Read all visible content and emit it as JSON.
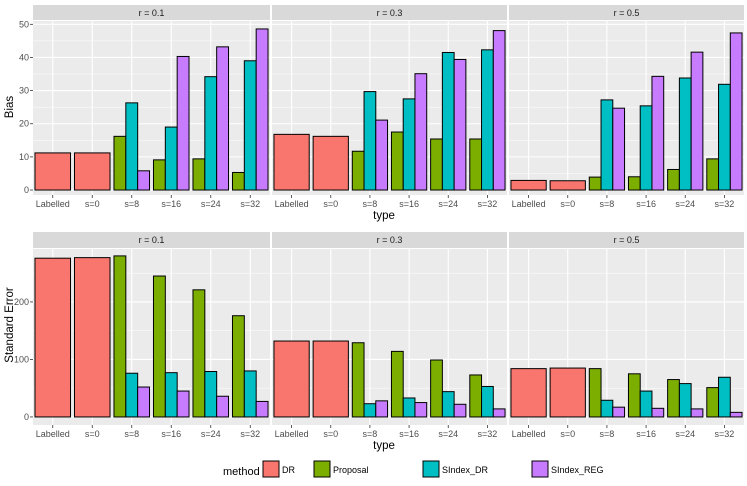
{
  "colors": {
    "DR": "#F8766D",
    "Proposal": "#7CAE00",
    "SIndex_DR": "#00BFC4",
    "SIndex_REG": "#C77CFF",
    "panel_bg": "#EBEBEB",
    "strip_bg": "#D9D9D9",
    "grid": "#FFFFFF"
  },
  "chart_data": [
    {
      "type": "bar",
      "title": "",
      "xlabel": "type",
      "ylabel": "Bias",
      "ylim": [
        -1.5,
        51
      ],
      "yticks": [
        0,
        10,
        20,
        30,
        40,
        50
      ],
      "categories": [
        "Labelled",
        "s=0",
        "s=8",
        "s=16",
        "s=24",
        "s=32"
      ],
      "facets": [
        {
          "label": "r = 0.1",
          "series": [
            {
              "name": "DR",
              "values": [
                11.2,
                11.2,
                null,
                null,
                null,
                null
              ]
            },
            {
              "name": "Proposal",
              "values": [
                null,
                null,
                16.2,
                9.1,
                9.4,
                5.3
              ]
            },
            {
              "name": "SIndex_DR",
              "values": [
                null,
                null,
                26.3,
                19.0,
                34.2,
                39.0
              ]
            },
            {
              "name": "SIndex_REG",
              "values": [
                null,
                null,
                5.8,
                40.3,
                43.2,
                48.6
              ]
            }
          ]
        },
        {
          "label": "r = 0.3",
          "series": [
            {
              "name": "DR",
              "values": [
                16.8,
                16.2,
                null,
                null,
                null,
                null
              ]
            },
            {
              "name": "Proposal",
              "values": [
                null,
                null,
                11.7,
                17.5,
                15.4,
                15.4
              ]
            },
            {
              "name": "SIndex_DR",
              "values": [
                null,
                null,
                29.7,
                27.5,
                41.5,
                42.3
              ]
            },
            {
              "name": "SIndex_REG",
              "values": [
                null,
                null,
                21.1,
                35.1,
                39.4,
                48.1
              ]
            }
          ]
        },
        {
          "label": "r = 0.5",
          "series": [
            {
              "name": "DR",
              "values": [
                2.9,
                2.8,
                null,
                null,
                null,
                null
              ]
            },
            {
              "name": "Proposal",
              "values": [
                null,
                null,
                3.9,
                4.0,
                6.2,
                9.4
              ]
            },
            {
              "name": "SIndex_DR",
              "values": [
                null,
                null,
                27.2,
                25.4,
                33.8,
                31.9
              ]
            },
            {
              "name": "SIndex_REG",
              "values": [
                null,
                null,
                24.7,
                34.3,
                41.6,
                47.4
              ]
            }
          ]
        }
      ]
    },
    {
      "type": "bar",
      "title": "",
      "xlabel": "type",
      "ylabel": "Standard Error",
      "ylim": [
        -14,
        292
      ],
      "yticks": [
        0,
        100,
        200
      ],
      "categories": [
        "Labelled",
        "s=0",
        "s=8",
        "s=16",
        "s=24",
        "s=32"
      ],
      "facets": [
        {
          "label": "r = 0.1",
          "series": [
            {
              "name": "DR",
              "values": [
                276,
                277,
                null,
                null,
                null,
                null
              ]
            },
            {
              "name": "Proposal",
              "values": [
                null,
                null,
                280,
                245,
                221,
                176
              ]
            },
            {
              "name": "SIndex_DR",
              "values": [
                null,
                null,
                76,
                77,
                79,
                80
              ]
            },
            {
              "name": "SIndex_REG",
              "values": [
                null,
                null,
                52,
                45,
                36,
                27
              ]
            }
          ]
        },
        {
          "label": "r = 0.3",
          "series": [
            {
              "name": "DR",
              "values": [
                132,
                132,
                null,
                null,
                null,
                null
              ]
            },
            {
              "name": "Proposal",
              "values": [
                null,
                null,
                129,
                114,
                99,
                73
              ]
            },
            {
              "name": "SIndex_DR",
              "values": [
                null,
                null,
                23,
                33,
                44,
                53
              ]
            },
            {
              "name": "SIndex_REG",
              "values": [
                null,
                null,
                28,
                25,
                22,
                14
              ]
            }
          ]
        },
        {
          "label": "r = 0.5",
          "series": [
            {
              "name": "DR",
              "values": [
                84,
                85,
                null,
                null,
                null,
                null
              ]
            },
            {
              "name": "Proposal",
              "values": [
                null,
                null,
                84,
                75,
                65,
                51
              ]
            },
            {
              "name": "SIndex_DR",
              "values": [
                null,
                null,
                29,
                45,
                58,
                69
              ]
            },
            {
              "name": "SIndex_REG",
              "values": [
                null,
                null,
                17,
                15,
                14,
                8
              ]
            }
          ]
        }
      ]
    }
  ],
  "legend": {
    "title": "method",
    "position": "bottom",
    "items": [
      "DR",
      "Proposal",
      "SIndex_DR",
      "SIndex_REG"
    ]
  }
}
